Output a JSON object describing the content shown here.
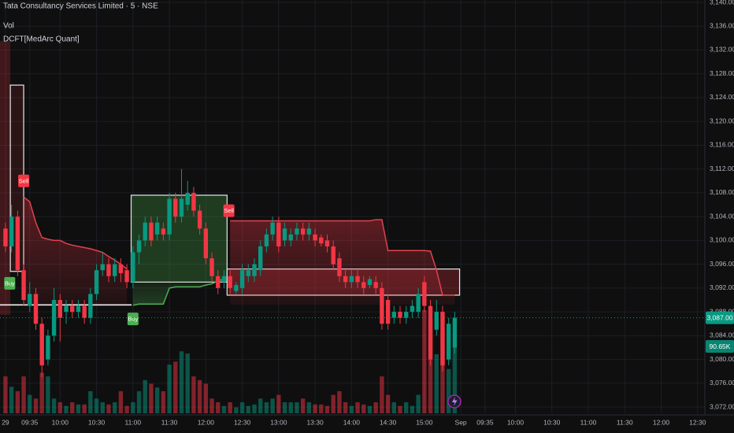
{
  "chart_data": {
    "type": "candlestick",
    "title": "Tata Consultancy Services Limited · 5 · NSE",
    "volume_label": "Vol",
    "indicator_label": "DCFT[MedArc Quant]",
    "up_color": "#089981",
    "down_color": "#f23645",
    "volume_up_color": "rgba(8,153,129,0.5)",
    "volume_down_color": "rgba(242,54,69,0.5)",
    "grid": true,
    "xlim": [
      -0.9,
      115.2
    ],
    "ylim": [
      3070.95,
      3140.4
    ],
    "vlim": [
      0,
      560
    ],
    "xticks": [
      {
        "value": 0,
        "label": "29"
      },
      {
        "value": 4,
        "label": "09:35"
      },
      {
        "value": 9,
        "label": "10:00"
      },
      {
        "value": 15,
        "label": "10:30"
      },
      {
        "value": 21,
        "label": "11:00"
      },
      {
        "value": 27,
        "label": "11:30"
      },
      {
        "value": 33,
        "label": "12:00"
      },
      {
        "value": 39,
        "label": "12:30"
      },
      {
        "value": 45,
        "label": "13:00"
      },
      {
        "value": 51,
        "label": "13:30"
      },
      {
        "value": 57,
        "label": "14:00"
      },
      {
        "value": 63,
        "label": "14:30"
      },
      {
        "value": 69,
        "label": "15:00"
      },
      {
        "value": 75,
        "label": "Sep"
      },
      {
        "value": 79,
        "label": "09:35"
      },
      {
        "value": 84,
        "label": "10:00"
      },
      {
        "value": 90,
        "label": "10:30"
      },
      {
        "value": 96,
        "label": "11:00"
      },
      {
        "value": 102,
        "label": "11:30"
      },
      {
        "value": 108,
        "label": "12:00"
      },
      {
        "value": 114,
        "label": "12:30"
      }
    ],
    "yticks": [
      {
        "value": 3072,
        "label": "3,072.00"
      },
      {
        "value": 3076,
        "label": "3,076.00"
      },
      {
        "value": 3080,
        "label": "3,080.00"
      },
      {
        "value": 3084,
        "label": "3,084.00"
      },
      {
        "value": 3088,
        "label": "3,088.00"
      },
      {
        "value": 3092,
        "label": "3,092.00"
      },
      {
        "value": 3096,
        "label": "3,096.00"
      },
      {
        "value": 3100,
        "label": "3,100.00"
      },
      {
        "value": 3104,
        "label": "3,104.00"
      },
      {
        "value": 3108,
        "label": "3,108.00"
      },
      {
        "value": 3112,
        "label": "3,112.00"
      },
      {
        "value": 3116,
        "label": "3,116.00"
      },
      {
        "value": 3120,
        "label": "3,120.00"
      },
      {
        "value": 3124,
        "label": "3,124.00"
      },
      {
        "value": 3128,
        "label": "3,128.00"
      },
      {
        "value": 3132,
        "label": "3,132.00"
      },
      {
        "value": 3136,
        "label": "3,136.00"
      },
      {
        "value": 3140,
        "label": "3,140.00"
      }
    ],
    "last_price_label": "3,087.00",
    "last_volume_label": "90.65K",
    "open": [
      3102,
      3099,
      3104,
      3095,
      3089,
      3091,
      3086,
      3080,
      3084,
      3090,
      3088,
      3089,
      3088,
      3089,
      3087,
      3091,
      3095,
      3096,
      3094,
      3096,
      3095,
      3093,
      3098,
      3100,
      3103,
      3101,
      3102,
      3101,
      3107,
      3104,
      3106,
      3108,
      3105,
      3102,
      3097,
      3094,
      3093,
      3094,
      3091.5,
      3092,
      3094,
      3094,
      3095,
      3099,
      3101,
      3103,
      3100,
      3100,
      3101,
      3102,
      3101,
      3101,
      3100.5,
      3100,
      3099,
      3097,
      3094,
      3093,
      3094,
      3093,
      3092.5,
      3093,
      3092,
      3090,
      3087,
      3088,
      3087,
      3088,
      3088,
      3093,
      3089,
      3085,
      3088,
      3080,
      3082
    ],
    "high": [
      3103,
      3106,
      3105,
      3096,
      3093,
      3092,
      3087,
      3085,
      3092,
      3091,
      3090,
      3090,
      3090,
      3090,
      3092,
      3096,
      3098,
      3097,
      3097,
      3097,
      3096,
      3099,
      3101,
      3104,
      3104,
      3104,
      3103,
      3108,
      3108,
      3112,
      3110,
      3109,
      3106,
      3103,
      3098,
      3095,
      3095,
      3095,
      3093,
      3096,
      3096,
      3097,
      3100,
      3102,
      3104,
      3104,
      3103,
      3102,
      3103,
      3103,
      3103,
      3102,
      3101,
      3101,
      3100,
      3098,
      3095,
      3095,
      3095,
      3094,
      3094,
      3094,
      3093,
      3091,
      3089,
      3089,
      3089,
      3090,
      3092,
      3094,
      3090,
      3090,
      3089,
      3087,
      3088
    ],
    "low": [
      3098,
      3098,
      3094,
      3089,
      3088,
      3085,
      3077,
      3079,
      3083,
      3083,
      3086,
      3087,
      3087,
      3086,
      3086,
      3090,
      3094,
      3093,
      3093,
      3093,
      3092,
      3092,
      3096,
      3099,
      3099,
      3100,
      3100,
      3100,
      3103,
      3103,
      3105,
      3104,
      3101,
      3096,
      3093,
      3091,
      3092,
      3091,
      3091,
      3091,
      3093,
      3093,
      3094,
      3098,
      3100,
      3098,
      3099,
      3099,
      3100,
      3100,
      3100,
      3099,
      3099,
      3098,
      3095,
      3093,
      3092,
      3092,
      3092,
      3091,
      3092,
      3091,
      3085,
      3085,
      3086,
      3086,
      3086,
      3087,
      3087,
      3088,
      3079,
      3084,
      3078,
      3079,
      3081
    ],
    "close": [
      3099,
      3104,
      3095,
      3090,
      3091,
      3086,
      3079,
      3084,
      3090,
      3087,
      3089,
      3088,
      3089,
      3087,
      3091,
      3095,
      3096,
      3094,
      3096,
      3094.5,
      3093,
      3098,
      3100,
      3103,
      3100,
      3103,
      3101,
      3107,
      3104,
      3107,
      3108,
      3105,
      3102,
      3097,
      3094,
      3092,
      3094,
      3092,
      3092.5,
      3095,
      3095,
      3096,
      3099,
      3101,
      3103,
      3099,
      3102,
      3101,
      3102,
      3101,
      3102,
      3100,
      3099.5,
      3099,
      3096,
      3094,
      3093,
      3094,
      3093,
      3092,
      3093.5,
      3092,
      3086,
      3086,
      3088,
      3087,
      3088,
      3089,
      3091,
      3089,
      3080,
      3088,
      3079,
      3086,
      3087
    ],
    "volume": [
      50,
      36,
      30,
      50,
      25,
      20,
      55,
      50,
      20,
      15,
      10,
      15,
      12,
      12,
      30,
      20,
      15,
      12,
      15,
      30,
      10,
      15,
      30,
      45,
      40,
      35,
      30,
      66,
      70,
      84,
      81,
      50,
      45,
      40,
      20,
      15,
      10,
      15,
      8,
      15,
      10,
      12,
      20,
      15,
      20,
      25,
      15,
      15,
      15,
      20,
      15,
      12,
      12,
      10,
      25,
      30,
      15,
      10,
      15,
      12,
      10,
      15,
      50,
      25,
      15,
      10,
      15,
      10,
      25,
      140,
      130,
      80,
      110,
      60,
      90.65
    ],
    "upper_trail": [
      null,
      null,
      null,
      3107.3,
      3106.5,
      3103,
      3100.5,
      3100.2,
      3100,
      3100,
      3099.5,
      3099.2,
      3099,
      3098.8,
      3098.6,
      3098.3,
      3098,
      3097.3,
      3096.7,
      3096,
      3095.2,
      null,
      null,
      null,
      null,
      null,
      null,
      null,
      null,
      null,
      null,
      null,
      null,
      null,
      null,
      null,
      null,
      3103.3,
      3103.3,
      3103.3,
      3103.3,
      3103.3,
      3103.3,
      3103.3,
      3103.3,
      3103.3,
      3103.3,
      3103.3,
      3103.3,
      3103.3,
      3103.3,
      3103.3,
      3103.3,
      3103.3,
      3103.3,
      3103.3,
      3103.3,
      3103.3,
      3103.3,
      3103.3,
      3103.3,
      3103.5,
      3103.5,
      3098.3,
      3098.3,
      3098.3,
      3098.3,
      3098.3,
      3098.3,
      3098.3,
      3098.2,
      3095,
      3090.8,
      3090.8,
      3090.8
    ],
    "upper_trail_color": "#e0424f",
    "lower_trail": [
      null,
      null,
      null,
      null,
      null,
      null,
      null,
      null,
      null,
      null,
      null,
      null,
      null,
      null,
      null,
      null,
      null,
      null,
      null,
      null,
      null,
      3089.1,
      3089.3,
      3089.3,
      3089.3,
      3089.3,
      3089.3,
      3092,
      3092.2,
      3092.2,
      3092.2,
      3092.2,
      3092.2,
      3092.5,
      3092.7,
      3093.2,
      3093.5,
      null,
      null,
      null,
      null,
      null,
      null,
      null,
      null,
      null,
      null,
      null,
      null,
      null,
      null,
      null,
      null,
      null,
      null,
      null,
      null,
      null,
      null,
      null,
      null,
      null,
      null,
      null,
      null,
      null,
      null,
      null,
      null,
      null,
      null,
      null,
      null,
      null,
      null
    ],
    "lower_trail_color": "#4caf50",
    "boxes": [
      {
        "start": -0.9,
        "end": 0.8,
        "low": 3087.5,
        "high": 3133.5,
        "fill": "rgba(242,54,69,0.22)"
      },
      {
        "start": 0.8,
        "end": 3,
        "low": 3094.8,
        "high": 3126.1,
        "fill": "rgba(242,54,69,0.12)",
        "outline": "#e8e8e8"
      },
      {
        "start": -0.9,
        "end": 20.7,
        "low": 3089.2,
        "high": 3089.2,
        "outline": "#e8e8e8"
      },
      {
        "start": 20.7,
        "end": 36.5,
        "low": 3093,
        "high": 3107.6,
        "fill": "rgba(76,175,80,0.28)",
        "outline": "#e8e8e8"
      },
      {
        "start": 36.5,
        "end": 74.8,
        "low": 3090.8,
        "high": 3095.2,
        "fill": "rgba(242,54,69,0.25)",
        "outline": "#e8e8e8"
      }
    ],
    "signals": [
      {
        "text": "Sell",
        "index": 3,
        "price": 3110,
        "color": "#f23645"
      },
      {
        "text": "Buy",
        "index": 0.7,
        "price": 3092.8,
        "color": "#4caf50"
      },
      {
        "text": "Buy",
        "index": 21,
        "price": 3086.8,
        "color": "#4caf50"
      },
      {
        "text": "Sell",
        "index": 36.8,
        "price": 3105,
        "color": "#f23645"
      }
    ]
  }
}
